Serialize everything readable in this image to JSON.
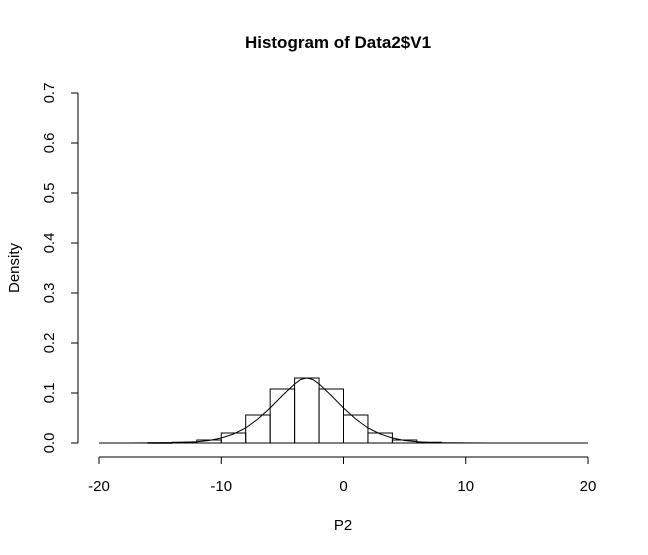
{
  "chart_data": {
    "type": "bar",
    "title": "Histogram of Data2$V1",
    "xlabel": "P2",
    "ylabel": "Density",
    "xlim": [
      -20,
      20
    ],
    "ylim": [
      0,
      0.7
    ],
    "x_ticks": [
      "-20",
      "-10",
      "0",
      "10",
      "20"
    ],
    "y_ticks": [
      "0.0",
      "0.1",
      "0.2",
      "0.3",
      "0.4",
      "0.5",
      "0.6",
      "0.7"
    ],
    "grid": false,
    "bins": [
      {
        "from": -16,
        "to": -14,
        "density": 0.0005
      },
      {
        "from": -14,
        "to": -12,
        "density": 0.0015
      },
      {
        "from": -12,
        "to": -10,
        "density": 0.006
      },
      {
        "from": -10,
        "to": -8,
        "density": 0.02
      },
      {
        "from": -8,
        "to": -6,
        "density": 0.056
      },
      {
        "from": -6,
        "to": -4,
        "density": 0.108
      },
      {
        "from": -4,
        "to": -2,
        "density": 0.13
      },
      {
        "from": -2,
        "to": 0,
        "density": 0.108
      },
      {
        "from": 0,
        "to": 2,
        "density": 0.056
      },
      {
        "from": 2,
        "to": 4,
        "density": 0.02
      },
      {
        "from": 4,
        "to": 6,
        "density": 0.006
      },
      {
        "from": 6,
        "to": 8,
        "density": 0.0015
      }
    ],
    "density_curve": {
      "type": "line",
      "x": [
        -20,
        -18,
        -16,
        -14,
        -12,
        -11,
        -10,
        -9,
        -8,
        -7,
        -6,
        -5,
        -4,
        -3.5,
        -3,
        -2.5,
        -2,
        -1,
        0,
        1,
        2,
        3,
        4,
        5,
        6,
        7,
        8,
        10,
        12,
        14,
        16,
        18,
        20
      ],
      "y": [
        0,
        0,
        0.0002,
        0.0007,
        0.0025,
        0.005,
        0.01,
        0.018,
        0.03,
        0.048,
        0.07,
        0.095,
        0.118,
        0.127,
        0.13,
        0.127,
        0.118,
        0.095,
        0.07,
        0.048,
        0.03,
        0.018,
        0.01,
        0.005,
        0.0025,
        0.001,
        0.0005,
        0.0001,
        0,
        0,
        0,
        0,
        0
      ]
    }
  }
}
